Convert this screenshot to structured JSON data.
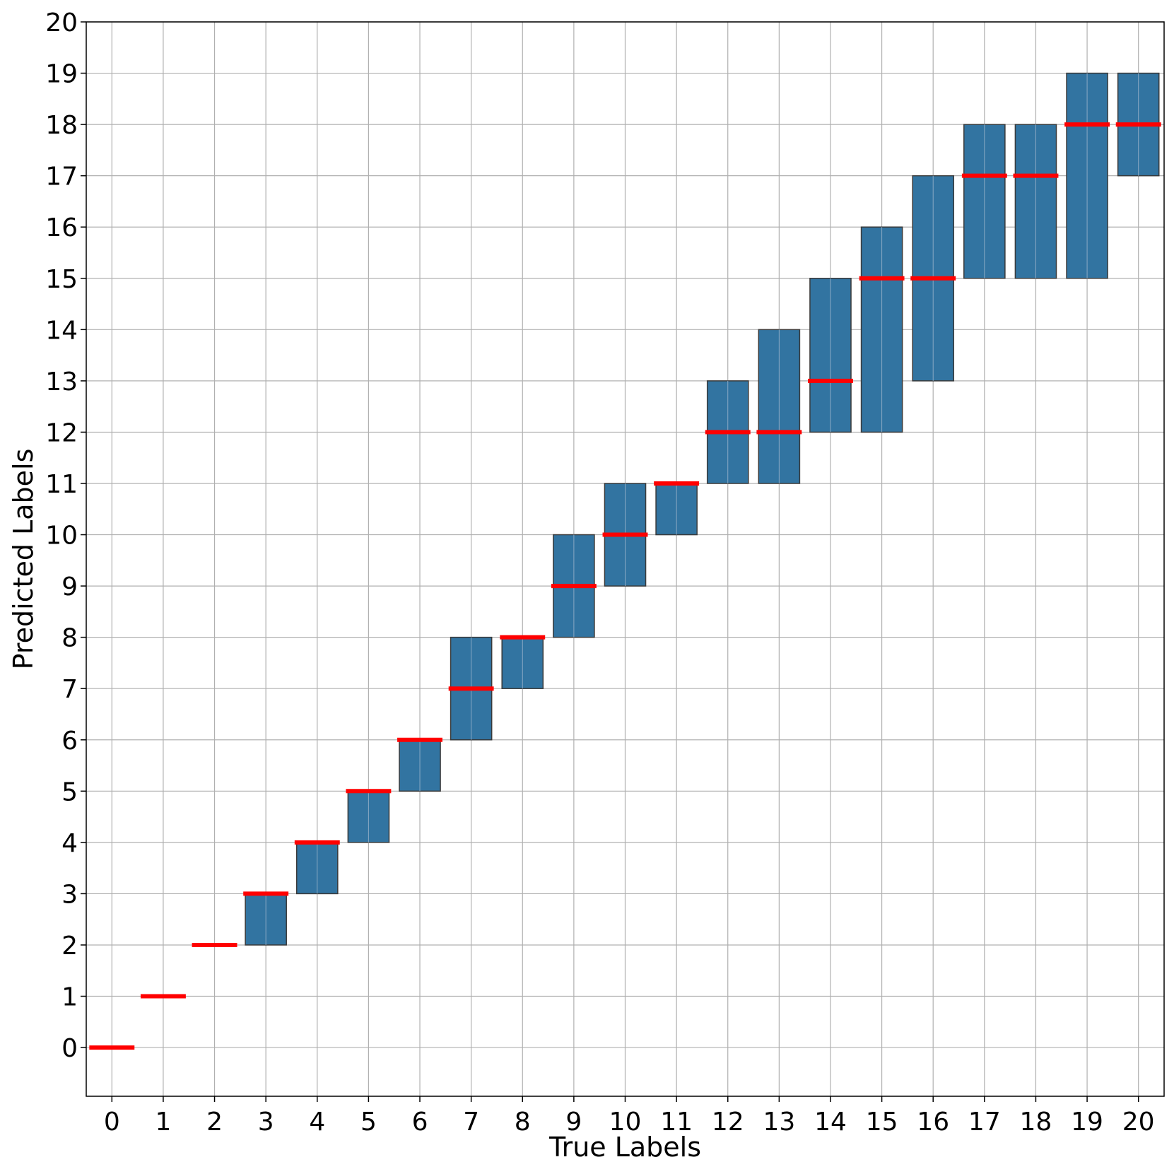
{
  "chart_data": {
    "type": "box",
    "xlabel": "True Labels",
    "ylabel": "Predicted Labels",
    "categories": [
      "0",
      "1",
      "2",
      "3",
      "4",
      "5",
      "6",
      "7",
      "8",
      "9",
      "10",
      "11",
      "12",
      "13",
      "14",
      "15",
      "16",
      "17",
      "18",
      "19",
      "20"
    ],
    "y_ticks": [
      "0",
      "1",
      "2",
      "3",
      "4",
      "5",
      "6",
      "7",
      "8",
      "9",
      "10",
      "11",
      "12",
      "13",
      "14",
      "15",
      "16",
      "17",
      "18",
      "19",
      "20"
    ],
    "ylim": [
      -0.95,
      20
    ],
    "grid": true,
    "boxes": [
      {
        "x": 0,
        "q1": 0,
        "median": 0,
        "q3": 0
      },
      {
        "x": 1,
        "q1": 1,
        "median": 1,
        "q3": 1
      },
      {
        "x": 2,
        "q1": 2,
        "median": 2,
        "q3": 2
      },
      {
        "x": 3,
        "q1": 2,
        "median": 3,
        "q3": 3
      },
      {
        "x": 4,
        "q1": 3,
        "median": 4,
        "q3": 4
      },
      {
        "x": 5,
        "q1": 4,
        "median": 5,
        "q3": 5
      },
      {
        "x": 6,
        "q1": 5,
        "median": 6,
        "q3": 6
      },
      {
        "x": 7,
        "q1": 6,
        "median": 7,
        "q3": 8
      },
      {
        "x": 8,
        "q1": 7,
        "median": 8,
        "q3": 8
      },
      {
        "x": 9,
        "q1": 8,
        "median": 9,
        "q3": 10
      },
      {
        "x": 10,
        "q1": 9,
        "median": 10,
        "q3": 11
      },
      {
        "x": 11,
        "q1": 10,
        "median": 11,
        "q3": 11
      },
      {
        "x": 12,
        "q1": 11,
        "median": 12,
        "q3": 13
      },
      {
        "x": 13,
        "q1": 11,
        "median": 12,
        "q3": 14
      },
      {
        "x": 14,
        "q1": 12,
        "median": 13,
        "q3": 15
      },
      {
        "x": 15,
        "q1": 12,
        "median": 15,
        "q3": 16
      },
      {
        "x": 16,
        "q1": 13,
        "median": 15,
        "q3": 17
      },
      {
        "x": 17,
        "q1": 15,
        "median": 17,
        "q3": 18
      },
      {
        "x": 18,
        "q1": 15,
        "median": 17,
        "q3": 18
      },
      {
        "x": 19,
        "q1": 15,
        "median": 18,
        "q3": 19
      },
      {
        "x": 20,
        "q1": 17,
        "median": 18,
        "q3": 19
      }
    ],
    "colors": {
      "box": "#3274a1",
      "median": "#ff0000",
      "grid": "#b0b0b0"
    }
  }
}
